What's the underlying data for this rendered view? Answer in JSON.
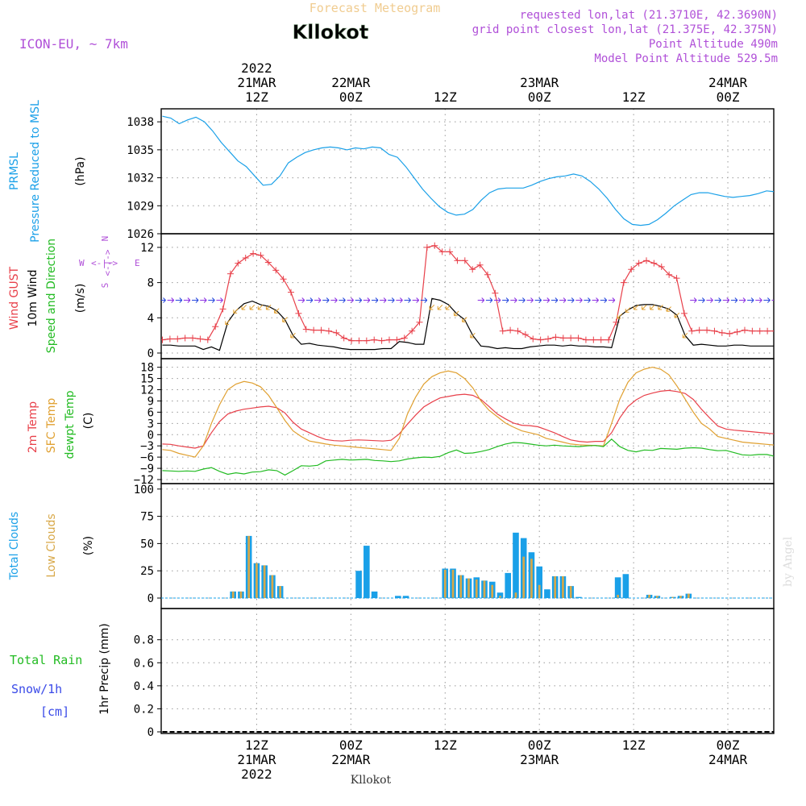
{
  "header": {
    "subtitle": "Forecast Meteogram",
    "location": "Kllokot",
    "model": "ICON-EU, ~ 7km",
    "requested": "requested lon,lat (21.3710E, 42.3690N)",
    "grid_point": "grid point closest lon,lat (21.375E, 42.375N)",
    "point_altitude": "Point Altitude 490m",
    "model_altitude": "Model Point Altitude 529.5m"
  },
  "footer": {
    "location": "Kllokot",
    "credit": "by Angel"
  },
  "time_axis": {
    "hours": [
      12,
      24,
      36,
      48,
      60,
      72
    ],
    "top": [
      {
        "hour": 12,
        "lines": [
          "2022",
          "21MAR",
          "12Z"
        ]
      },
      {
        "hour": 24,
        "lines": [
          "22MAR",
          "00Z"
        ]
      },
      {
        "hour": 36,
        "lines": [
          "12Z"
        ]
      },
      {
        "hour": 48,
        "lines": [
          "23MAR",
          "00Z"
        ]
      },
      {
        "hour": 60,
        "lines": [
          "12Z"
        ]
      },
      {
        "hour": 72,
        "lines": [
          "24MAR",
          "00Z"
        ]
      }
    ],
    "bottom": [
      {
        "hour": 12,
        "lines": [
          "12Z",
          "21MAR",
          "2022"
        ]
      },
      {
        "hour": 24,
        "lines": [
          "00Z",
          "22MAR"
        ]
      },
      {
        "hour": 36,
        "lines": [
          "12Z"
        ]
      },
      {
        "hour": 48,
        "lines": [
          "00Z",
          "23MAR"
        ]
      },
      {
        "hour": 60,
        "lines": [
          "12Z"
        ]
      },
      {
        "hour": 72,
        "lines": [
          "00Z",
          "24MAR"
        ]
      }
    ]
  },
  "colors": {
    "pressure": "#1aa0e8",
    "gust": "#e8404a",
    "wind": "#000000",
    "direction_label": "#22bb22",
    "compass": "#b050d8",
    "temp2m": "#e8404a",
    "sfc_temp": "#e0a030",
    "dewpt": "#22bb22",
    "total_clouds": "#1aa0e8",
    "low_clouds": "#d8a848",
    "total_rain": "#22bb22",
    "snow": "#3a4ae8"
  },
  "chart_data": [
    {
      "type": "line",
      "label_lines": [
        "PRMSL",
        "Pressure Reduced to MSL"
      ],
      "unit": "(hPa)",
      "ylim": [
        1026,
        1040
      ],
      "yticks": [
        1026,
        1029,
        1032,
        1035,
        1038
      ],
      "grid": true,
      "series": [
        {
          "values": [
            1038.6,
            1038.4,
            1037.8,
            1038.2,
            1038.5,
            1038.0,
            1037.0,
            1035.8,
            1034.8,
            1033.8,
            1033.2,
            1032.2,
            1031.2,
            1031.3,
            1032.2,
            1033.6,
            1034.2,
            1034.7,
            1035.0,
            1035.2,
            1035.3,
            1035.2,
            1035.0,
            1035.2,
            1035.1,
            1035.3,
            1035.2,
            1034.5,
            1034.2,
            1033.2,
            1032.0,
            1030.8,
            1029.8,
            1028.9,
            1028.3,
            1028.0,
            1028.1,
            1028.6,
            1029.6,
            1030.4,
            1030.8,
            1030.9,
            1030.9,
            1030.9,
            1031.2,
            1031.6,
            1031.9,
            1032.1,
            1032.2,
            1032.4,
            1032.2,
            1031.6,
            1030.8,
            1029.8,
            1028.6,
            1027.6,
            1027.0,
            1026.9,
            1027.0,
            1027.5,
            1028.2,
            1029.0,
            1029.6,
            1030.2,
            1030.4,
            1030.4,
            1030.2,
            1030.0,
            1029.9,
            1030.0,
            1030.1,
            1030.3,
            1030.6,
            1030.5
          ]
        }
      ]
    },
    {
      "type": "line",
      "label_lines": [
        "Wind GUST",
        "10m Wind",
        "Speed and Direction"
      ],
      "unit": "(m/s)",
      "compass": {
        "W": "W",
        "E": "E",
        "N": "N",
        "S": "S"
      },
      "ylim": [
        0,
        13
      ],
      "yticks": [
        0,
        4,
        8,
        12
      ],
      "grid": true,
      "series": [
        {
          "name": "Wind GUST",
          "values": [
            1.5,
            1.6,
            1.6,
            1.7,
            1.7,
            1.6,
            1.5,
            3.0,
            5.0,
            9.0,
            10.2,
            10.8,
            11.3,
            11.1,
            10.3,
            9.4,
            8.4,
            6.9,
            4.5,
            2.7,
            2.6,
            2.6,
            2.5,
            2.3,
            1.7,
            1.4,
            1.4,
            1.4,
            1.5,
            1.4,
            1.5,
            1.5,
            1.7,
            2.5,
            3.5,
            12.0,
            12.2,
            11.5,
            11.5,
            10.5,
            10.5,
            9.5,
            10.0,
            8.9,
            6.8,
            2.5,
            2.6,
            2.5,
            2.1,
            1.6,
            1.5,
            1.6,
            1.8,
            1.7,
            1.7,
            1.7,
            1.5,
            1.5,
            1.5,
            1.5,
            3.5,
            8.0,
            9.5,
            10.2,
            10.5,
            10.2,
            9.8,
            8.9,
            8.5,
            4.5,
            2.5,
            2.6,
            2.6,
            2.5,
            2.3,
            2.2,
            2.4,
            2.6,
            2.5,
            2.5,
            2.5,
            2.5
          ]
        },
        {
          "name": "10m Wind",
          "values": [
            0.9,
            0.9,
            0.8,
            0.8,
            0.8,
            0.4,
            0.7,
            0.3,
            3.5,
            4.8,
            5.6,
            5.9,
            5.5,
            5.3,
            4.8,
            3.8,
            2.0,
            1.0,
            1.1,
            0.9,
            0.8,
            0.7,
            0.5,
            0.4,
            0.4,
            0.4,
            0.4,
            0.5,
            0.5,
            1.3,
            1.2,
            1.0,
            1.0,
            6.2,
            6.0,
            5.5,
            4.5,
            3.8,
            2.0,
            0.8,
            0.7,
            0.5,
            0.6,
            0.5,
            0.5,
            0.7,
            0.8,
            0.9,
            0.9,
            0.8,
            0.9,
            0.8,
            0.8,
            0.7,
            0.7,
            0.6,
            4.2,
            4.9,
            5.4,
            5.5,
            5.5,
            5.3,
            5.0,
            4.3,
            2.0,
            0.9,
            1.0,
            0.9,
            0.8,
            0.8,
            0.9,
            0.9,
            0.8,
            0.8,
            0.8,
            0.8
          ]
        }
      ]
    },
    {
      "type": "line",
      "label_lines": [
        "2m Temp",
        "SFC Temp",
        "dewpt Temp"
      ],
      "unit": "(C)",
      "ylim": [
        -12,
        19
      ],
      "yticks": [
        -12,
        -9,
        -6,
        -3,
        0,
        3,
        6,
        9,
        12,
        15,
        18
      ],
      "grid": true,
      "series": [
        {
          "name": "2m Temp",
          "values": [
            -2.5,
            -2.6,
            -3.0,
            -3.3,
            -3.6,
            -3.0,
            0.5,
            3.5,
            5.5,
            6.3,
            6.8,
            7.1,
            7.4,
            7.6,
            7.2,
            5.8,
            3.3,
            1.5,
            0.5,
            -0.5,
            -1.3,
            -1.6,
            -1.7,
            -1.5,
            -1.4,
            -1.5,
            -1.6,
            -1.7,
            -1.5,
            0.2,
            2.8,
            5.2,
            7.4,
            8.7,
            9.8,
            10.2,
            10.6,
            10.8,
            10.5,
            9.4,
            7.5,
            5.5,
            4.2,
            3.1,
            2.5,
            2.4,
            2.1,
            1.3,
            0.5,
            -0.5,
            -1.4,
            -1.8,
            -2.0,
            -1.8,
            -1.8,
            0.5,
            4.5,
            7.5,
            9.3,
            10.5,
            11.1,
            11.6,
            11.8,
            11.5,
            11.0,
            9.4,
            6.8,
            4.5,
            2.3,
            1.5,
            1.2,
            1.0,
            0.8,
            0.6,
            0.4,
            0.2
          ]
        },
        {
          "name": "SFC Temp",
          "values": [
            -4.0,
            -4.2,
            -5.0,
            -5.5,
            -6.0,
            -3.0,
            3.0,
            8.0,
            12.0,
            13.5,
            14.2,
            13.8,
            12.8,
            10.5,
            7.2,
            3.8,
            1.0,
            -0.5,
            -1.7,
            -2.1,
            -2.5,
            -2.8,
            -3.0,
            -3.2,
            -3.4,
            -3.6,
            -3.8,
            -4.0,
            -4.2,
            -1.0,
            5.5,
            10.0,
            13.5,
            15.5,
            16.5,
            17.0,
            16.5,
            15.0,
            12.5,
            9.0,
            6.5,
            4.8,
            3.1,
            2.0,
            1.0,
            0.5,
            0.0,
            -1.0,
            -1.5,
            -2.0,
            -2.5,
            -2.7,
            -2.8,
            -2.9,
            -3.0,
            3.0,
            9.5,
            14.0,
            16.5,
            17.5,
            18.0,
            17.5,
            16.0,
            13.0,
            9.5,
            6.0,
            3.0,
            1.5,
            -0.5,
            -1.0,
            -1.5,
            -2.0,
            -2.2,
            -2.4,
            -2.6,
            -2.8
          ]
        },
        {
          "name": "dewpt Temp",
          "values": [
            -9.6,
            -9.7,
            -9.8,
            -9.7,
            -9.8,
            -9.2,
            -8.8,
            -9.8,
            -10.6,
            -10.2,
            -10.5,
            -10.0,
            -9.9,
            -9.4,
            -9.6,
            -10.8,
            -9.6,
            -8.3,
            -8.4,
            -8.2,
            -7.0,
            -6.8,
            -6.6,
            -6.8,
            -6.7,
            -6.6,
            -6.9,
            -7.0,
            -7.2,
            -7.0,
            -6.5,
            -6.2,
            -6.0,
            -6.1,
            -5.8,
            -4.8,
            -4.1,
            -5.0,
            -4.9,
            -4.5,
            -4.0,
            -3.2,
            -2.5,
            -2.1,
            -2.2,
            -2.5,
            -2.8,
            -3.0,
            -2.8,
            -3.0,
            -3.1,
            -3.2,
            -3.0,
            -2.9,
            -3.2,
            -1.2,
            -3.2,
            -4.2,
            -4.6,
            -4.1,
            -4.2,
            -3.7,
            -3.8,
            -3.9,
            -3.6,
            -3.5,
            -3.6,
            -4.0,
            -4.3,
            -4.2,
            -4.8,
            -5.4,
            -5.5,
            -5.3,
            -5.3,
            -5.8
          ]
        }
      ]
    },
    {
      "type": "bar",
      "label_lines": [
        "Total Clouds",
        "Low Clouds"
      ],
      "unit": "(%)",
      "ylim": [
        0,
        105
      ],
      "yticks": [
        0,
        25,
        50,
        75,
        100
      ],
      "grid": true,
      "series": [
        {
          "name": "Total Clouds",
          "x": [
            9,
            10,
            11,
            12,
            13,
            14,
            15,
            25,
            26,
            27,
            30,
            31,
            36,
            37,
            38,
            39,
            40,
            41,
            42,
            43,
            44,
            45,
            46,
            47,
            48,
            49,
            50,
            51,
            52,
            53,
            58,
            59,
            62,
            63,
            65,
            66,
            67
          ],
          "values": [
            6,
            6,
            57,
            32,
            30,
            21,
            11,
            25,
            48,
            6,
            2,
            2,
            27,
            27,
            21,
            18,
            19,
            16,
            15,
            5,
            23,
            60,
            55,
            42,
            29,
            8,
            20,
            20,
            11,
            1,
            19,
            22,
            3,
            2,
            1,
            2,
            4
          ]
        },
        {
          "name": "Low Clouds",
          "x": [
            9,
            10,
            11,
            12,
            13,
            14,
            15,
            36,
            37,
            38,
            39,
            40,
            41,
            42,
            43,
            45,
            46,
            47,
            48,
            50,
            51,
            52,
            58,
            62,
            63,
            65,
            66,
            67
          ],
          "values": [
            6,
            6,
            57,
            32,
            30,
            21,
            11,
            26,
            26,
            21,
            18,
            17,
            16,
            12,
            2,
            5,
            38,
            36,
            12,
            20,
            20,
            11,
            3,
            3,
            2,
            1,
            2,
            4
          ]
        }
      ]
    },
    {
      "type": "line",
      "label_lines": [
        "Total Rain",
        "Snow/1h",
        "[cm]"
      ],
      "unit": "1hr Precip (mm)",
      "ylim": [
        0,
        0.98
      ],
      "yticks": [
        0,
        0.2,
        0.4,
        0.6,
        0.8
      ],
      "grid": true,
      "series": [
        {
          "name": "Total Rain",
          "values": [
            0,
            0,
            0,
            0,
            0,
            0,
            0,
            0,
            0,
            0,
            0,
            0,
            0,
            0,
            0,
            0,
            0,
            0,
            0,
            0,
            0,
            0,
            0,
            0,
            0,
            0,
            0,
            0,
            0,
            0,
            0,
            0,
            0,
            0,
            0,
            0,
            0,
            0,
            0,
            0,
            0,
            0,
            0,
            0,
            0,
            0,
            0,
            0,
            0,
            0,
            0,
            0,
            0,
            0,
            0,
            0,
            0,
            0,
            0,
            0,
            0,
            0,
            0,
            0,
            0,
            0,
            0,
            0,
            0,
            0,
            0,
            0,
            0,
            0,
            0,
            0
          ]
        }
      ]
    }
  ]
}
